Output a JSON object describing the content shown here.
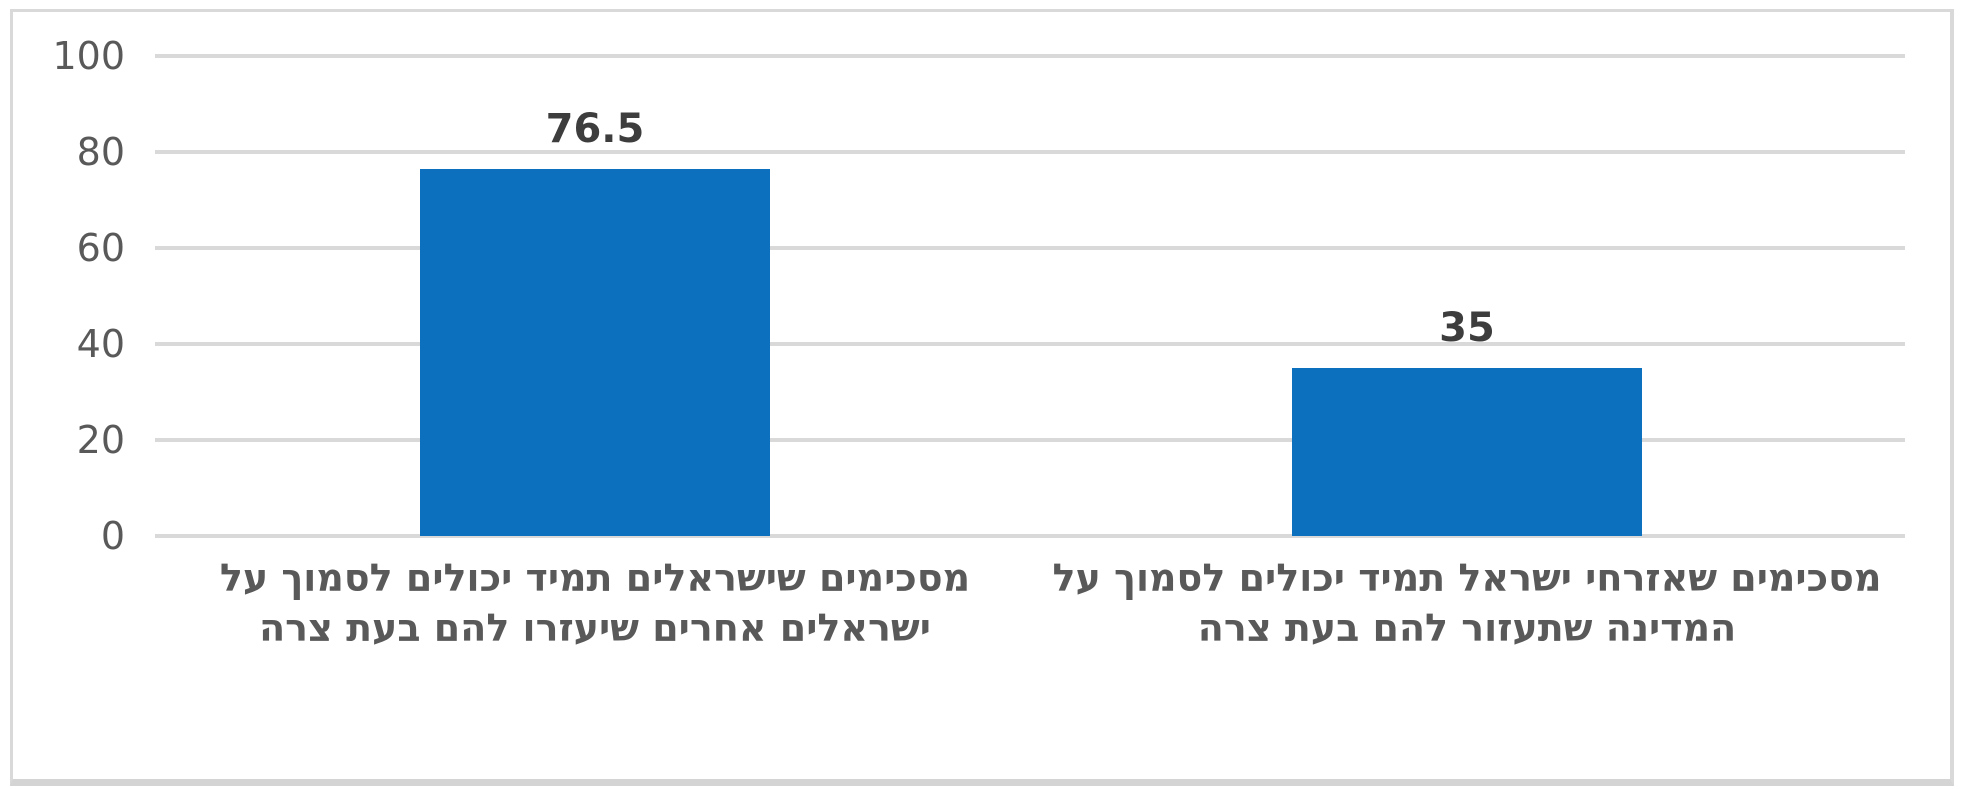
{
  "chart_data": {
    "type": "bar",
    "title": "",
    "xlabel": "",
    "ylabel": "",
    "categories": [
      "מסכימים שישראלים תמיד יכולים לסמוך על ישראלים אחרים שיעזרו להם בעת צרה",
      "מסכימים שאזרחי ישראל תמיד יכולים לסמוך על המדינה שתעזור להם בעת צרה"
    ],
    "category_lines": [
      [
        "מסכימים שישראלים תמיד יכולים לסמוך על",
        "ישראלים אחרים שיעזרו להם בעת צרה"
      ],
      [
        "מסכימים שאזרחי ישראל תמיד יכולים לסמוך על",
        "המדינה שתעזור להם בעת צרה"
      ]
    ],
    "values": [
      76.5,
      35
    ],
    "data_labels": [
      "76.5",
      "35"
    ],
    "ylim": [
      0,
      100
    ],
    "yticks": [
      0,
      20,
      40,
      60,
      80,
      100
    ],
    "ytick_labels": [
      "0",
      "20",
      "40",
      "60",
      "80",
      "100"
    ],
    "grid": true,
    "legend": "none",
    "text_direction": "rtl"
  },
  "colors": {
    "bar": "#0c70be",
    "gridline": "#d9d9d9",
    "tick_label": "#595959",
    "value_label": "#3d3d3d",
    "category_label": "#595959",
    "frame_border": "#d9d9d9",
    "background": "#ffffff"
  }
}
